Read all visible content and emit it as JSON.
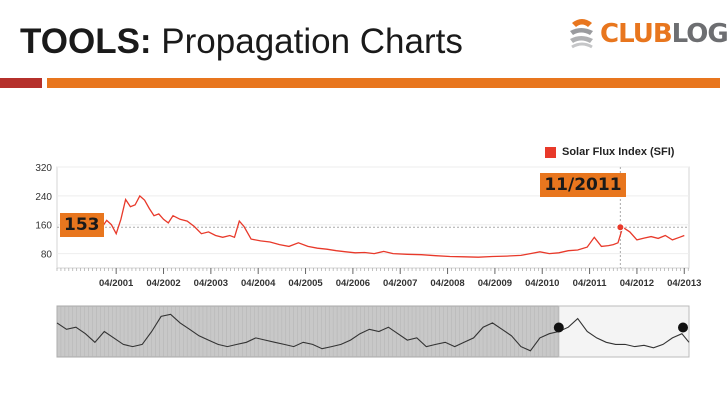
{
  "slide": {
    "title_bold": "TOOLS:",
    "title_rest": " Propagation Charts"
  },
  "logo": {
    "part1": "CLUB",
    "part2": "LOG",
    "brand_color": "#e8761e",
    "secondary_color": "#6d6e71"
  },
  "accents": {
    "left_bar_color": "#b5302b",
    "rule_color": "#e8761e"
  },
  "chart_data": {
    "type": "line",
    "legend_position": "top-right",
    "series": [
      {
        "name": "Solar Flux Index (SFI)",
        "color": "#e8392a",
        "x": [
          2000.85,
          2000.95,
          2001.05,
          2001.15,
          2001.25,
          2001.35,
          2001.45,
          2001.55,
          2001.65,
          2001.75,
          2001.85,
          2001.95,
          2002.05,
          2002.15,
          2002.25,
          2002.35,
          2002.45,
          2002.6,
          2002.75,
          2002.9,
          2003.05,
          2003.2,
          2003.35,
          2003.5,
          2003.65,
          2003.75,
          2003.85,
          2003.95,
          2004.1,
          2004.3,
          2004.5,
          2004.7,
          2004.9,
          2005.1,
          2005.3,
          2005.5,
          2005.7,
          2005.9,
          2006.1,
          2006.3,
          2006.5,
          2006.7,
          2006.9,
          2007.1,
          2007.4,
          2007.7,
          2008.0,
          2008.3,
          2008.6,
          2008.9,
          2009.2,
          2009.5,
          2009.8,
          2010.0,
          2010.2,
          2010.4,
          2010.6,
          2010.8,
          2011.0,
          2011.2,
          2011.35,
          2011.5,
          2011.65,
          2011.75,
          2011.85,
          2011.95,
          2012.1,
          2012.25,
          2012.4,
          2012.55,
          2012.7,
          2012.85,
          2013.0,
          2013.15,
          2013.25
        ],
        "y": [
          160,
          153,
          172,
          160,
          135,
          175,
          230,
          210,
          215,
          240,
          228,
          205,
          185,
          190,
          175,
          165,
          185,
          175,
          170,
          155,
          135,
          140,
          130,
          125,
          130,
          125,
          170,
          155,
          120,
          115,
          112,
          105,
          100,
          110,
          100,
          95,
          92,
          88,
          85,
          82,
          83,
          80,
          86,
          80,
          78,
          77,
          74,
          72,
          71,
          70,
          72,
          73,
          75,
          80,
          85,
          80,
          82,
          88,
          90,
          98,
          125,
          100,
          102,
          105,
          110,
          153,
          140,
          118,
          123,
          127,
          122,
          130,
          118,
          125,
          130
        ]
      }
    ],
    "xlim": [
      2000.0,
      2013.35
    ],
    "ylim": [
      40,
      320
    ],
    "yticks": [
      80,
      160,
      240,
      320
    ],
    "xtick_values": [
      2001.25,
      2002.25,
      2003.25,
      2004.25,
      2005.25,
      2006.25,
      2007.25,
      2008.25,
      2009.25,
      2010.25,
      2011.25,
      2012.25,
      2013.25
    ],
    "xtick_labels": [
      "04/2001",
      "04/2002",
      "04/2003",
      "04/2004",
      "04/2005",
      "04/2006",
      "04/2007",
      "04/2008",
      "04/2009",
      "04/2010",
      "04/2011",
      "04/2012",
      "04/2013"
    ],
    "reference_line_y": 153,
    "cursor_x": 2011.9,
    "callouts": {
      "value_label": "153",
      "date_label": "11/2011"
    },
    "navigator": {
      "x": [
        2000.0,
        2000.2,
        2000.4,
        2000.6,
        2000.8,
        2001.0,
        2001.2,
        2001.4,
        2001.6,
        2001.8,
        2002.0,
        2002.2,
        2002.4,
        2002.6,
        2002.8,
        2003.0,
        2003.2,
        2003.4,
        2003.6,
        2003.8,
        2004.0,
        2004.2,
        2004.4,
        2004.6,
        2004.8,
        2005.0,
        2005.2,
        2005.4,
        2005.6,
        2005.8,
        2006.0,
        2006.2,
        2006.4,
        2006.6,
        2006.8,
        2007.0,
        2007.2,
        2007.4,
        2007.6,
        2007.8,
        2008.0,
        2008.2,
        2008.4,
        2008.6,
        2008.8,
        2009.0,
        2009.2,
        2009.4,
        2009.6,
        2009.8,
        2010.0,
        2010.2,
        2010.4,
        2010.6,
        2010.8,
        2011.0,
        2011.2,
        2011.4,
        2011.6,
        2011.8,
        2012.0,
        2012.2,
        2012.4,
        2012.6,
        2012.8,
        2013.0,
        2013.2,
        2013.35
      ],
      "y": [
        0.7,
        0.55,
        0.6,
        0.45,
        0.25,
        0.5,
        0.35,
        0.2,
        0.15,
        0.2,
        0.5,
        0.85,
        0.9,
        0.7,
        0.55,
        0.4,
        0.3,
        0.2,
        0.15,
        0.2,
        0.25,
        0.35,
        0.3,
        0.25,
        0.2,
        0.15,
        0.25,
        0.2,
        0.1,
        0.15,
        0.2,
        0.3,
        0.45,
        0.55,
        0.5,
        0.6,
        0.45,
        0.3,
        0.35,
        0.15,
        0.2,
        0.25,
        0.15,
        0.25,
        0.35,
        0.6,
        0.7,
        0.55,
        0.4,
        0.15,
        0.05,
        0.35,
        0.45,
        0.5,
        0.6,
        0.8,
        0.5,
        0.35,
        0.25,
        0.2,
        0.2,
        0.15,
        0.18,
        0.12,
        0.2,
        0.35,
        0.45,
        0.25
      ],
      "window_start": 2010.6,
      "window_end": 2013.35,
      "handle_color": "#111111"
    }
  }
}
